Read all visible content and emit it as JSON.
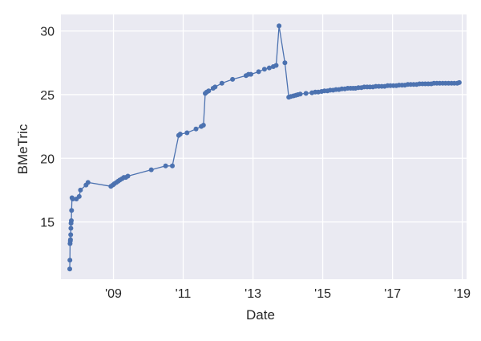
{
  "chart_data": {
    "type": "line",
    "title": "",
    "xlabel": "Date",
    "ylabel": "BMeTric",
    "xlim": [
      "2007-07-01",
      "2019-02-15"
    ],
    "ylim": [
      10.5,
      31.3
    ],
    "x_ticks": [
      {
        "value": "2009-01-01",
        "label": "'09"
      },
      {
        "value": "2011-01-01",
        "label": "'11"
      },
      {
        "value": "2013-01-01",
        "label": "'13"
      },
      {
        "value": "2015-01-01",
        "label": "'15"
      },
      {
        "value": "2017-01-01",
        "label": "'17"
      },
      {
        "value": "2019-01-01",
        "label": "'19"
      }
    ],
    "y_ticks": [
      15,
      20,
      25,
      30
    ],
    "grid": true,
    "background": "#eaeaf2",
    "series_color": "#4c72b0",
    "markers": true,
    "series": [
      {
        "x": [
          "2007-10-01",
          "2007-10-03",
          "2007-10-05",
          "2007-10-07",
          "2007-10-09",
          "2007-10-11",
          "2007-10-13",
          "2007-10-15",
          "2007-10-18",
          "2007-10-21",
          "2007-10-25",
          "2007-11-01",
          "2007-12-10",
          "2008-01-08",
          "2008-01-22",
          "2008-03-20",
          "2008-04-10",
          "2008-12-05",
          "2008-12-25",
          "2009-01-10",
          "2009-02-01",
          "2009-02-20",
          "2009-03-10",
          "2009-04-01",
          "2009-04-20",
          "2009-05-10",
          "2009-06-01",
          "2010-02-01",
          "2010-07-01",
          "2010-09-10",
          "2010-11-15",
          "2010-12-01",
          "2011-02-10",
          "2011-05-15",
          "2011-07-10",
          "2011-08-01",
          "2011-08-20",
          "2011-09-05",
          "2011-09-25",
          "2011-11-10",
          "2011-12-01",
          "2012-02-10",
          "2012-06-01",
          "2012-10-20",
          "2012-11-15",
          "2012-12-10",
          "2013-03-01",
          "2013-05-01",
          "2013-06-20",
          "2013-08-01",
          "2013-09-01",
          "2013-10-01",
          "2013-12-01",
          "2014-01-10",
          "2014-02-01",
          "2014-03-01",
          "2014-03-25",
          "2014-04-15",
          "2014-05-10",
          "2014-07-10",
          "2014-09-10",
          "2014-10-15",
          "2014-11-15",
          "2014-12-20",
          "2015-01-20",
          "2015-02-20",
          "2015-03-20",
          "2015-04-20",
          "2015-05-20",
          "2015-06-20",
          "2015-07-20",
          "2015-08-20",
          "2015-09-20",
          "2015-10-20",
          "2015-11-15",
          "2015-12-10",
          "2016-01-10",
          "2016-02-10",
          "2016-03-10",
          "2016-04-10",
          "2016-05-10",
          "2016-06-10",
          "2016-07-10",
          "2016-08-10",
          "2016-09-10",
          "2016-10-10",
          "2016-11-10",
          "2016-12-10",
          "2017-01-10",
          "2017-02-10",
          "2017-03-10",
          "2017-04-10",
          "2017-05-10",
          "2017-06-10",
          "2017-07-10",
          "2017-08-10",
          "2017-09-10",
          "2017-10-10",
          "2017-11-10",
          "2017-12-10",
          "2018-01-10",
          "2018-02-10",
          "2018-03-10",
          "2018-04-10",
          "2018-05-10",
          "2018-06-10",
          "2018-07-10",
          "2018-08-10",
          "2018-09-10",
          "2018-10-10",
          "2018-11-10",
          "2018-12-01"
        ],
        "y": [
          11.3,
          12.0,
          13.3,
          13.5,
          13.6,
          14.0,
          14.5,
          14.9,
          15.1,
          15.9,
          16.9,
          16.8,
          16.8,
          17.0,
          17.5,
          17.9,
          18.1,
          17.8,
          17.9,
          18.0,
          18.1,
          18.2,
          18.3,
          18.4,
          18.5,
          18.5,
          18.6,
          19.1,
          19.4,
          19.4,
          21.8,
          21.9,
          22.0,
          22.3,
          22.5,
          22.6,
          25.1,
          25.2,
          25.3,
          25.5,
          25.6,
          25.9,
          26.2,
          26.5,
          26.6,
          26.6,
          26.8,
          27.0,
          27.1,
          27.2,
          27.3,
          30.4,
          27.5,
          24.8,
          24.85,
          24.9,
          24.95,
          25.0,
          25.05,
          25.1,
          25.15,
          25.2,
          25.2,
          25.25,
          25.3,
          25.3,
          25.35,
          25.35,
          25.4,
          25.4,
          25.45,
          25.45,
          25.5,
          25.5,
          25.5,
          25.5,
          25.55,
          25.55,
          25.6,
          25.6,
          25.6,
          25.6,
          25.65,
          25.65,
          25.65,
          25.65,
          25.7,
          25.7,
          25.7,
          25.7,
          25.75,
          25.75,
          25.75,
          25.8,
          25.8,
          25.8,
          25.8,
          25.85,
          25.85,
          25.85,
          25.85,
          25.85,
          25.9,
          25.9,
          25.9,
          25.9,
          25.9,
          25.9,
          25.9,
          25.9,
          25.9,
          25.95
        ]
      }
    ]
  }
}
